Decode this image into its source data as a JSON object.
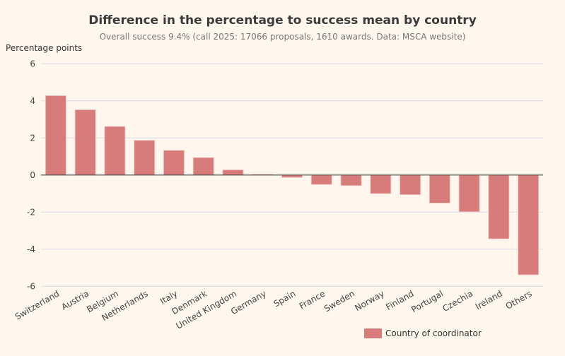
{
  "chart_data": {
    "type": "bar",
    "title": "Difference in the percentage to success mean by country",
    "subtitle": "Overall success 9.4% (call 2025: 17066 proposals, 1610 awards. Data: MSCA website)",
    "xlabel": "",
    "ylabel": "Percentage points",
    "ylim": [
      -6,
      6
    ],
    "yticks": [
      6,
      4,
      2,
      0,
      -2,
      -4,
      -6
    ],
    "grid": true,
    "legend_position": "bottom-right",
    "categories": [
      "Switzerland",
      "Austria",
      "Belgium",
      "Netherlands",
      "Italy",
      "Denmark",
      "United Kingdom",
      "Germany",
      "Spain",
      "France",
      "Sweden",
      "Norway",
      "Finland",
      "Portugal",
      "Czechia",
      "Ireland",
      "Others"
    ],
    "series": [
      {
        "name": "Country of coordinator",
        "color": "#d87c7b",
        "values": [
          4.28,
          3.52,
          2.62,
          1.87,
          1.33,
          0.94,
          0.28,
          0.04,
          -0.13,
          -0.51,
          -0.57,
          -1.0,
          -1.06,
          -1.51,
          -1.98,
          -3.44,
          -5.38
        ]
      }
    ]
  }
}
